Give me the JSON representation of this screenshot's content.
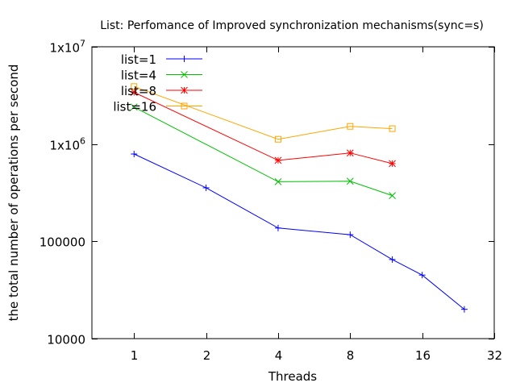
{
  "chart_data": {
    "type": "line",
    "title": "List: Perfomance of Improved synchronization mechanisms(sync=s)",
    "xlabel": "Threads",
    "ylabel": "the total number of operations per second",
    "x_scale": "log2",
    "y_scale": "log10",
    "xlim": [
      0.6667,
      32
    ],
    "ylim": [
      10000,
      10000000
    ],
    "x_ticks": [
      {
        "value": 1,
        "label": "1"
      },
      {
        "value": 2,
        "label": "2"
      },
      {
        "value": 4,
        "label": "4"
      },
      {
        "value": 8,
        "label": "8"
      },
      {
        "value": 16,
        "label": "16"
      },
      {
        "value": 32,
        "label": "32"
      }
    ],
    "y_ticks": [
      {
        "value": 10000,
        "label": "10000"
      },
      {
        "value": 100000,
        "label": "100000"
      },
      {
        "value": 1000000,
        "label": "1x10",
        "sup": "6"
      },
      {
        "value": 10000000,
        "label": "1x10",
        "sup": "7"
      }
    ],
    "grid": false,
    "legend_position": "top-left",
    "series": [
      {
        "name": "list=1",
        "color": "#0000ff",
        "marker": "plus",
        "x": [
          1,
          2,
          4,
          8,
          12,
          16,
          24
        ],
        "y": [
          790000,
          355000,
          137000,
          117000,
          65000,
          45000,
          20000
        ]
      },
      {
        "name": "list=4",
        "color": "#00c000",
        "marker": "cross",
        "x": [
          1,
          4,
          8,
          12
        ],
        "y": [
          2400000,
          410000,
          415000,
          295000
        ]
      },
      {
        "name": "list=8",
        "color": "#ff0000",
        "marker": "star",
        "x": [
          1,
          4,
          8,
          12
        ],
        "y": [
          3400000,
          680000,
          810000,
          630000
        ]
      },
      {
        "name": "list=16",
        "color": "#ffa500",
        "marker": "square",
        "x": [
          1,
          4,
          8,
          12
        ],
        "y": [
          3900000,
          1120000,
          1520000,
          1440000
        ]
      }
    ]
  }
}
